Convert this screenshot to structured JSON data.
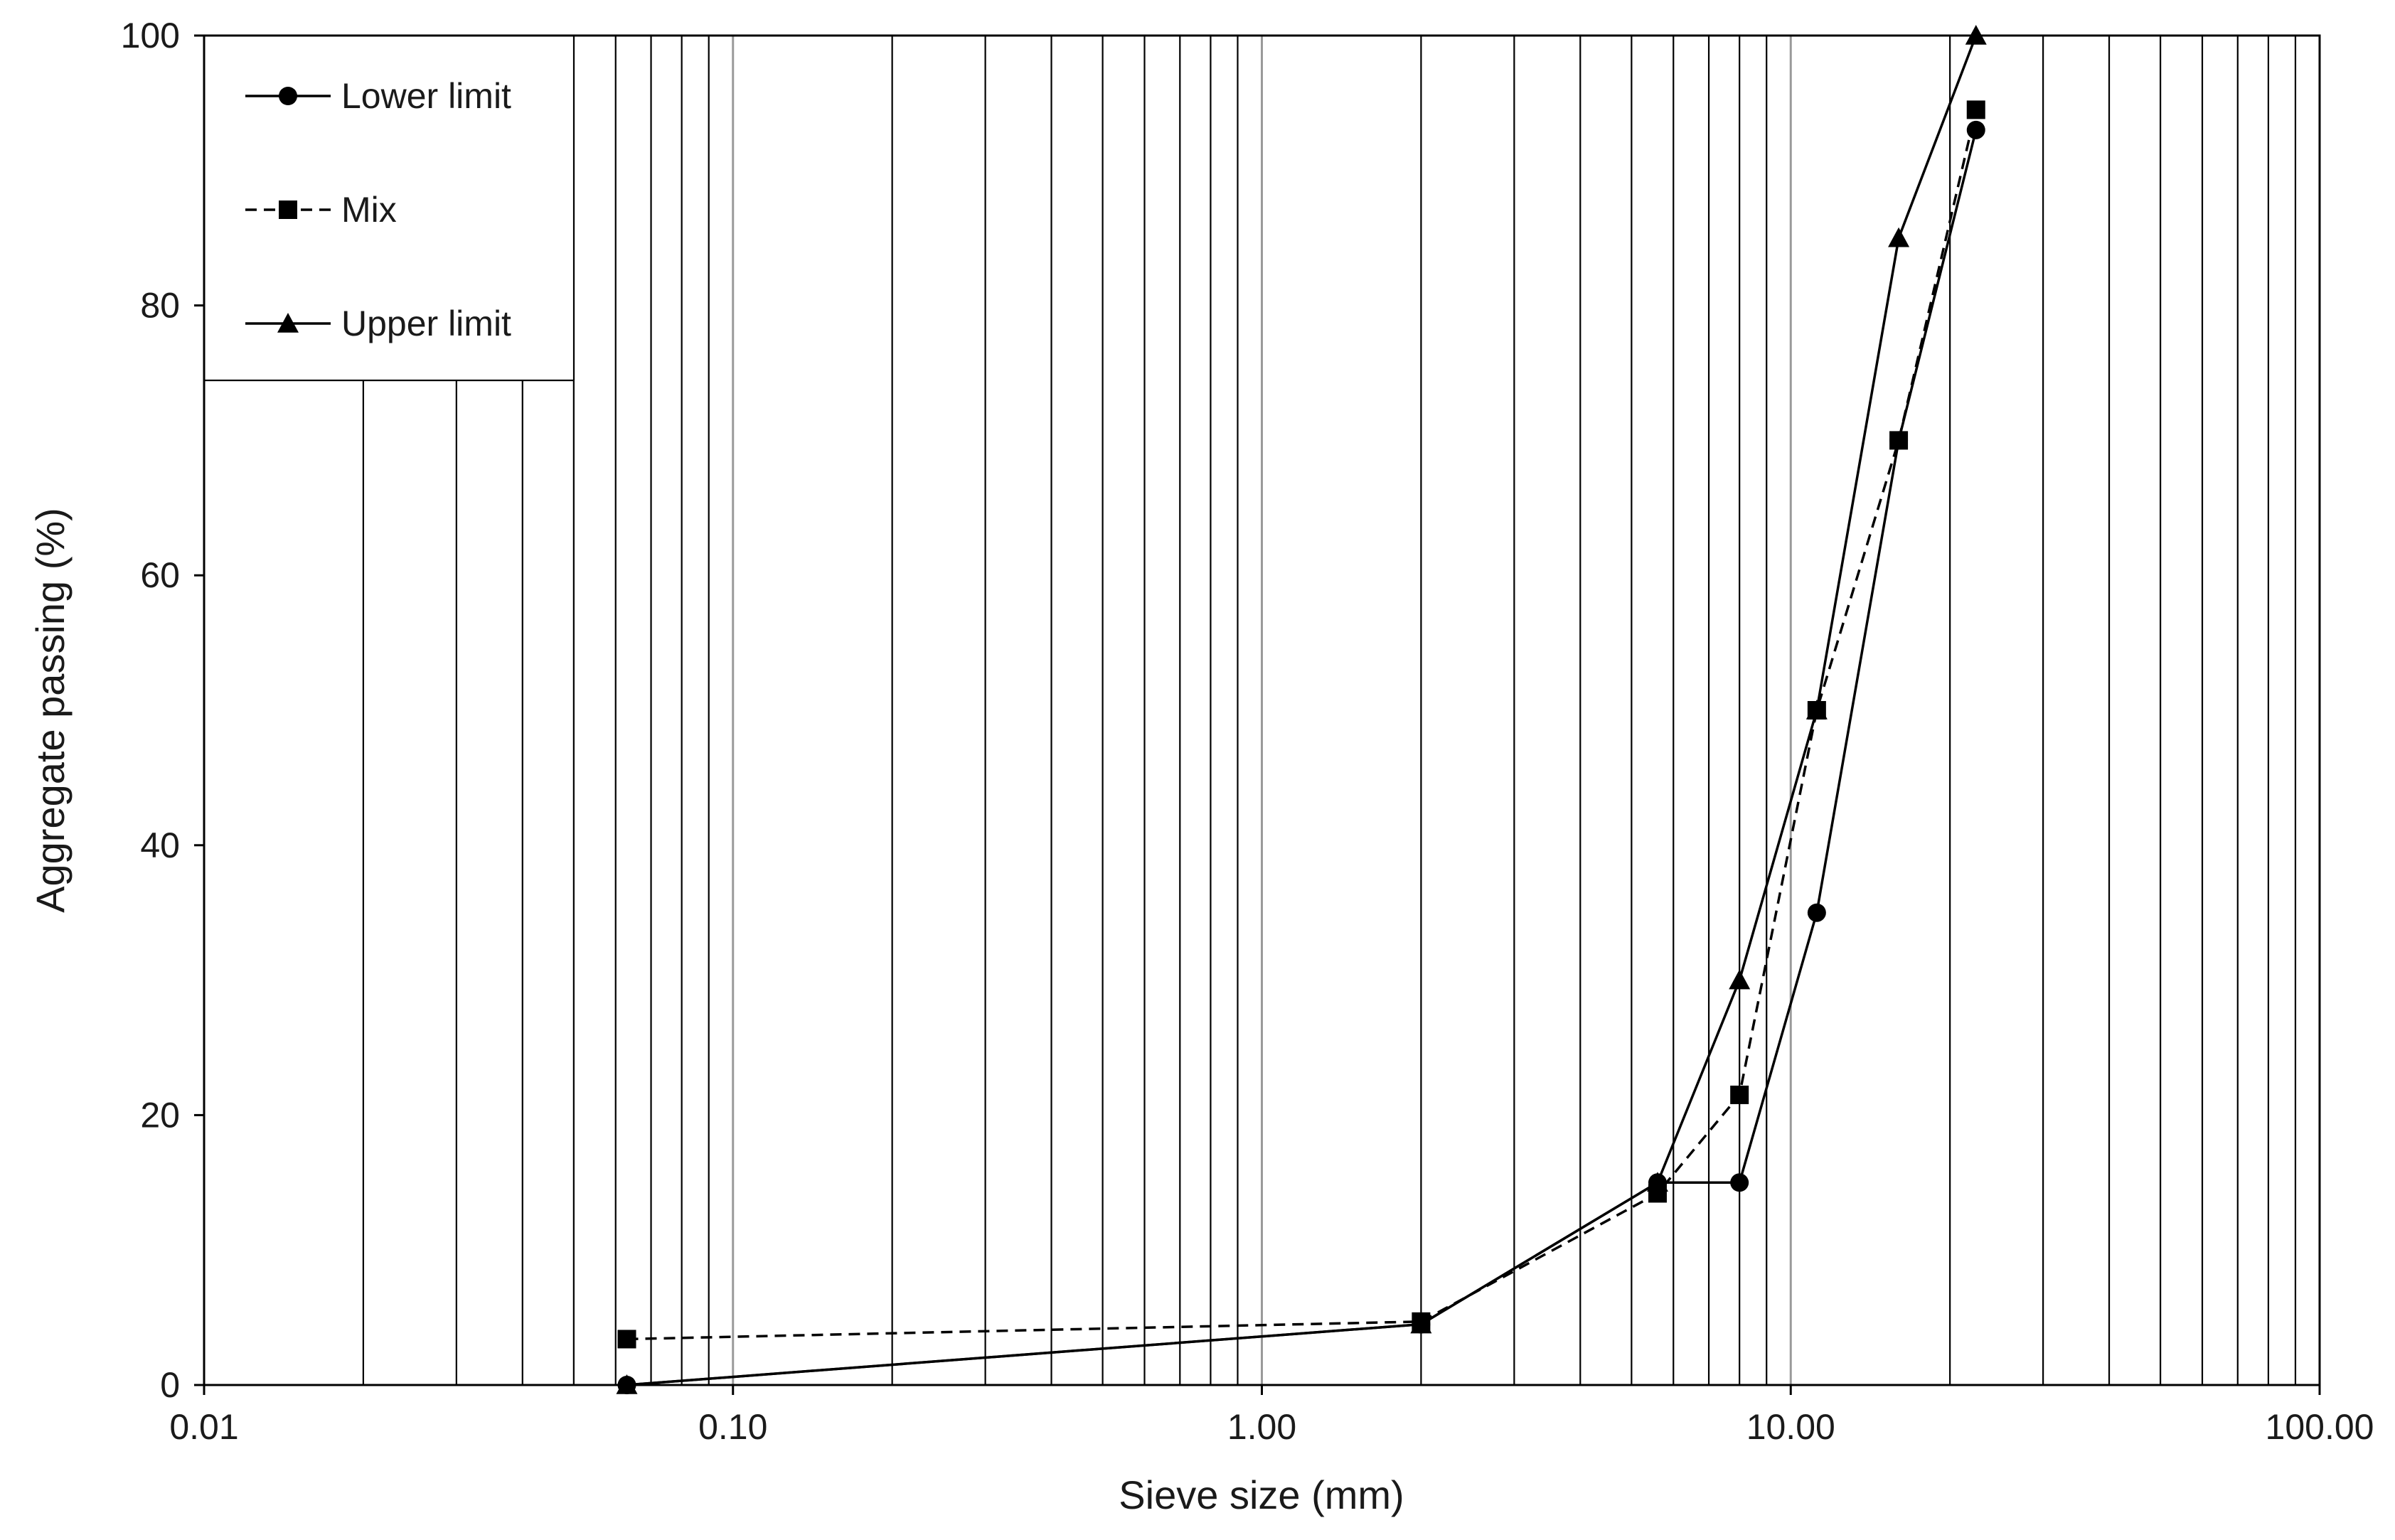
{
  "chart_data": {
    "type": "line",
    "xlabel": "Sieve size (mm)",
    "ylabel": "Aggregate passing (%)",
    "x_scale": "log",
    "xlim": [
      0.01,
      100
    ],
    "ylim": [
      0,
      100
    ],
    "x_ticks": [
      0.01,
      0.1,
      1,
      10,
      100
    ],
    "x_tick_labels": [
      "0.01",
      "0.10",
      "1.00",
      "10.00",
      "100.00"
    ],
    "y_ticks": [
      0,
      20,
      40,
      60,
      80,
      100
    ],
    "y_tick_labels": [
      "0",
      "20",
      "40",
      "60",
      "80",
      "100"
    ],
    "grid": "vertical",
    "legend": "top-left",
    "series": [
      {
        "name": "Lower limit",
        "marker": "circle",
        "dash": "solid",
        "color": "#000000",
        "x": [
          0.063,
          2,
          5.6,
          8,
          11.2,
          16,
          22.4
        ],
        "y": [
          0,
          4.5,
          15,
          15,
          35,
          70,
          93
        ]
      },
      {
        "name": "Mix",
        "marker": "square",
        "dash": "dashed",
        "color": "#000000",
        "x": [
          0.063,
          2,
          5.6,
          8,
          11.2,
          16,
          22.4
        ],
        "y": [
          3.4,
          4.7,
          14.2,
          21.5,
          50,
          70,
          94.5
        ]
      },
      {
        "name": "Upper limit",
        "marker": "triangle",
        "dash": "solid",
        "color": "#000000",
        "x": [
          0.063,
          2,
          5.6,
          8,
          11.2,
          16,
          22.4
        ],
        "y": [
          0,
          4.5,
          15,
          30,
          50,
          85,
          100
        ]
      }
    ]
  }
}
